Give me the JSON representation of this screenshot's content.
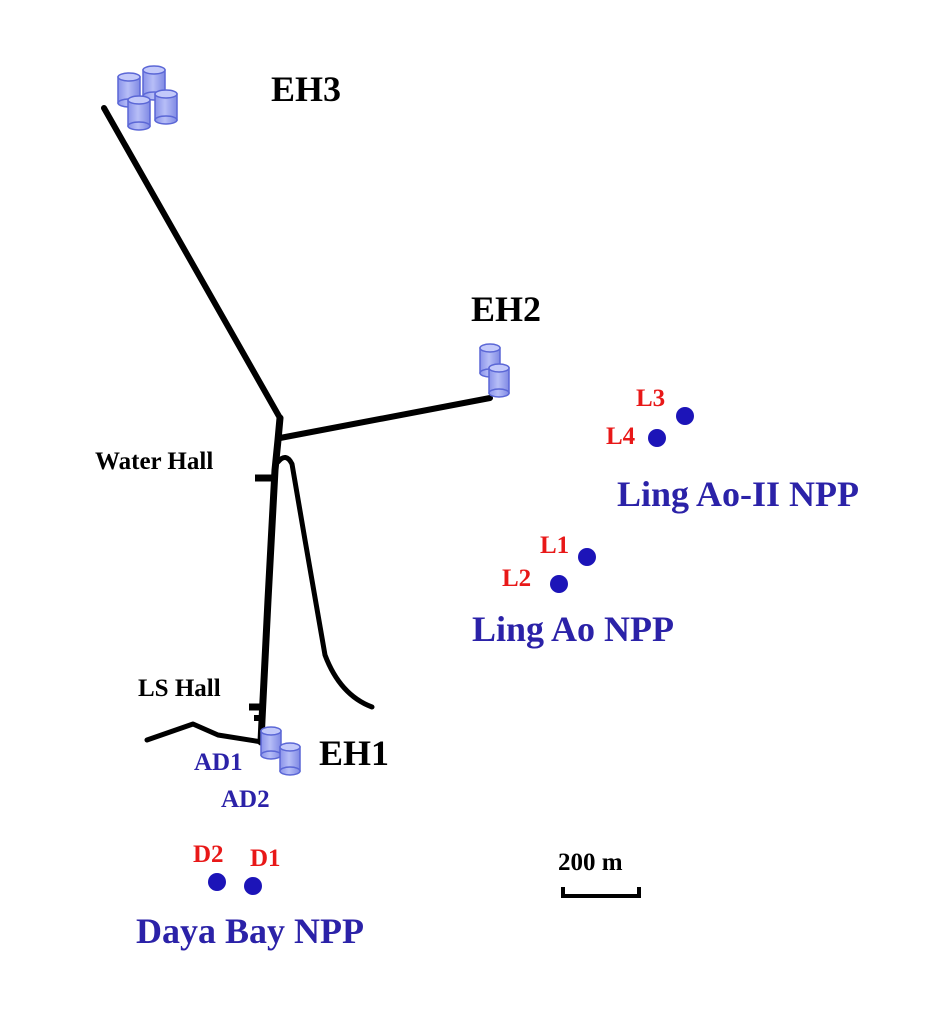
{
  "colors": {
    "tunnel": "#000000",
    "detector_fill": "#9aa4f2",
    "detector_stroke": "#5b67d6",
    "reactor": "#1c14b8",
    "reactor_label": "#e81818",
    "npp_label": "#2b22a8",
    "hall_label": "#000000"
  },
  "halls": {
    "eh1": "EH1",
    "eh2": "EH2",
    "eh3": "EH3",
    "water_hall": "Water Hall",
    "ls_hall": "LS Hall"
  },
  "detectors": {
    "ad1": "AD1",
    "ad2": "AD2"
  },
  "reactors": {
    "d1": "D1",
    "d2": "D2",
    "l1": "L1",
    "l2": "L2",
    "l3": "L3",
    "l4": "L4"
  },
  "plants": {
    "daya_bay": "Daya Bay NPP",
    "ling_ao": "Ling Ao NPP",
    "ling_ao_ii": "Ling Ao-II NPP"
  },
  "scale_bar": {
    "label": "200 m"
  }
}
